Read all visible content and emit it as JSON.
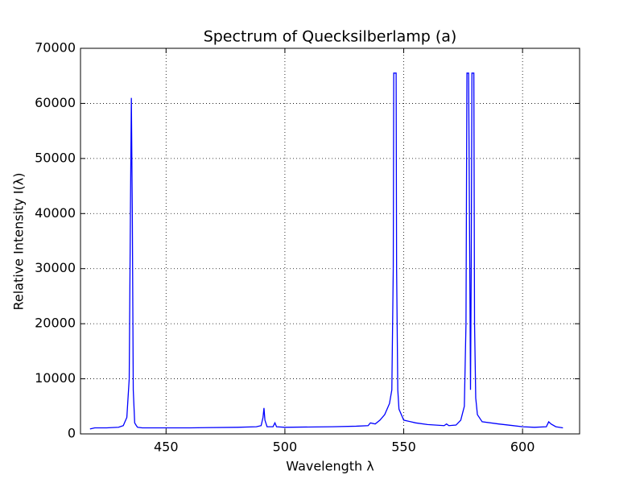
{
  "chart_data": {
    "type": "line",
    "title": "Spectrum of Quecksilberlamp (a)",
    "x_label": "Wavelength λ",
    "y_label": "Relative Intensity I(λ)",
    "x": [
      418,
      420,
      425,
      430,
      432,
      433.5,
      434.5,
      435,
      435.4,
      435.8,
      436.2,
      436.8,
      437.5,
      438,
      440,
      460,
      480,
      488,
      490,
      490.8,
      491.2,
      491.6,
      492.5,
      495,
      495.8,
      496.5,
      500,
      520,
      530,
      535,
      536,
      538,
      540,
      542,
      544,
      545,
      545.6,
      545.8,
      546.8,
      547,
      547.5,
      548,
      550,
      555,
      560,
      567,
      568,
      569,
      572,
      574,
      575.5,
      576.2,
      576.6,
      577.3,
      577.8,
      578.1,
      578.4,
      578.7,
      579.5,
      579.8,
      580.3,
      581,
      583,
      590,
      600,
      605,
      610,
      611,
      612,
      614,
      617
    ],
    "values": [
      900,
      1100,
      1100,
      1200,
      1500,
      3000,
      10000,
      40000,
      61000,
      40000,
      8000,
      2000,
      1500,
      1200,
      1100,
      1100,
      1200,
      1300,
      1500,
      3000,
      4700,
      2500,
      1300,
      1300,
      2000,
      1300,
      1200,
      1300,
      1400,
      1500,
      2000,
      1800,
      2500,
      3500,
      5500,
      8000,
      30000,
      65500,
      65500,
      30000,
      8000,
      4500,
      2500,
      2000,
      1700,
      1500,
      1800,
      1500,
      1600,
      2500,
      5000,
      20000,
      65500,
      65500,
      30000,
      8000,
      30000,
      65500,
      65500,
      20000,
      6500,
      3500,
      2200,
      1800,
      1300,
      1200,
      1300,
      2200,
      1800,
      1300,
      1100
    ],
    "color": "#0000ff",
    "xlim": [
      414,
      624
    ],
    "xticks": [
      450,
      500,
      550,
      600
    ],
    "ylim": [
      0,
      70000
    ],
    "yticks": [
      0,
      10000,
      20000,
      30000,
      40000,
      50000,
      60000,
      70000
    ],
    "grid": true
  }
}
